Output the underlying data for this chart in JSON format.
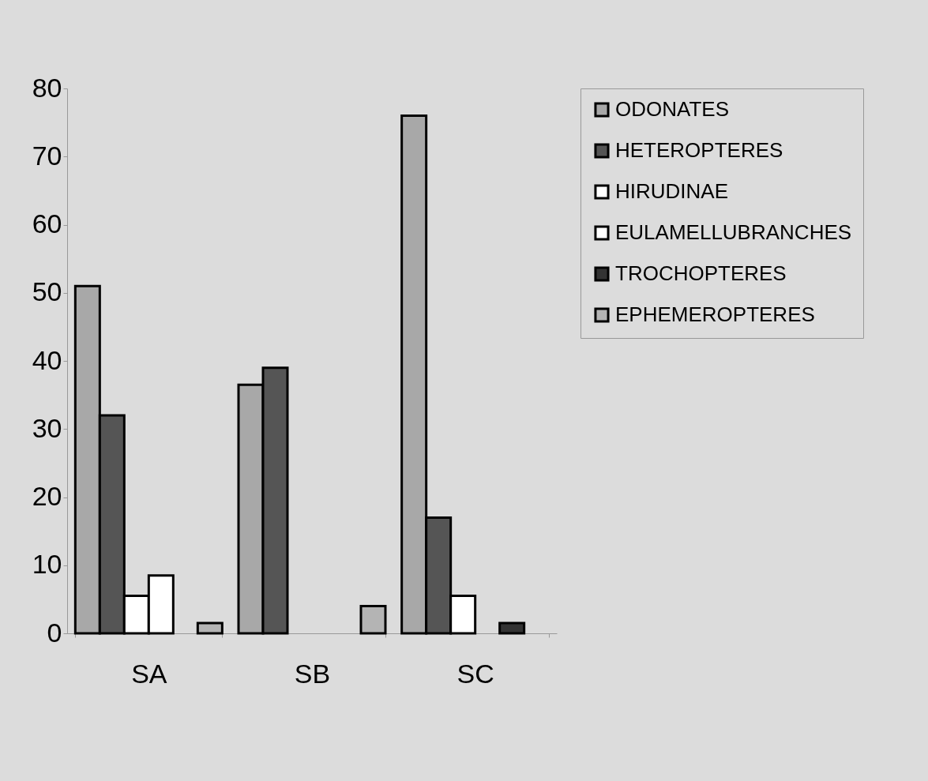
{
  "chart_data": {
    "type": "bar",
    "categories": [
      "SA",
      "SB",
      "SC"
    ],
    "series": [
      {
        "name": "ODONATES",
        "color": "#a8a8a8",
        "values": [
          51,
          36.5,
          76
        ]
      },
      {
        "name": "HETEROPTERES",
        "color": "#555555",
        "values": [
          32,
          39,
          17
        ]
      },
      {
        "name": "HIRUDINAE",
        "color": "#ffffff",
        "values": [
          5.5,
          0,
          5.5
        ]
      },
      {
        "name": "EULAMELLUBRANCHES",
        "color": "#ffffff",
        "values": [
          8.5,
          0,
          0
        ]
      },
      {
        "name": "TROCHOPTERES",
        "color": "#333333",
        "values": [
          0,
          0,
          1.5
        ]
      },
      {
        "name": "EPHEMEROPTERES",
        "color": "#b4b4b4",
        "values": [
          1.5,
          4,
          0
        ]
      }
    ],
    "ylim": [
      0,
      80
    ],
    "yticks": [
      0,
      10,
      20,
      30,
      40,
      50,
      60,
      70,
      80
    ],
    "legend": "right"
  }
}
